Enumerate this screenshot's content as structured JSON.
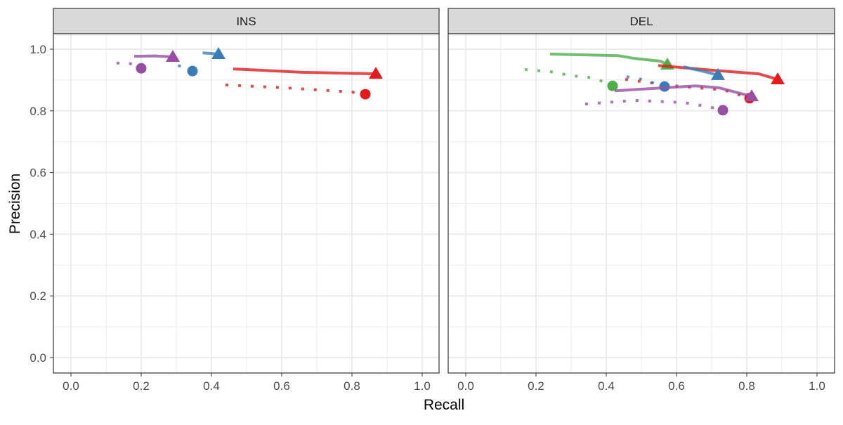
{
  "chart_data": {
    "type": "line",
    "xlabel": "Recall",
    "ylabel": "Precision",
    "xlim": [
      0,
      1
    ],
    "ylim": [
      0,
      1
    ],
    "x_ticks": [
      "0.0",
      "0.2",
      "0.4",
      "0.6",
      "0.8",
      "1.0"
    ],
    "y_ticks": [
      "0.0",
      "0.2",
      "0.4",
      "0.6",
      "0.8",
      "1.0"
    ],
    "grid": true,
    "colors": {
      "red": "#E41A1C",
      "blue": "#377EB8",
      "green": "#4DAF4A",
      "purple": "#984EA3"
    },
    "panels": [
      {
        "strip": "INS",
        "series": [
          {
            "color": "#984EA3",
            "linetype": "solid",
            "end_marker": "triangle",
            "x": [
              0.18,
              0.24,
              0.29
            ],
            "y": [
              0.977,
              0.978,
              0.975
            ]
          },
          {
            "color": "#984EA3",
            "linetype": "dotted",
            "end_marker": "circle",
            "x": [
              0.13,
              0.165,
              0.2
            ],
            "y": [
              0.955,
              0.955,
              0.938
            ]
          },
          {
            "color": "#377EB8",
            "linetype": "solid",
            "end_marker": "triangle",
            "x": [
              0.375,
              0.4,
              0.42
            ],
            "y": [
              0.988,
              0.986,
              0.984
            ]
          },
          {
            "color": "#377EB8",
            "linetype": "dotted",
            "end_marker": "circle",
            "x": [
              0.305,
              0.315,
              0.346
            ],
            "y": [
              0.947,
              0.943,
              0.929
            ]
          },
          {
            "color": "#E41A1C",
            "linetype": "solid",
            "end_marker": "triangle",
            "x": [
              0.462,
              0.658,
              0.868
            ],
            "y": [
              0.936,
              0.925,
              0.92
            ]
          },
          {
            "color": "#E41A1C",
            "linetype": "dotted",
            "end_marker": "circle",
            "x": [
              0.44,
              0.62,
              0.8,
              0.838
            ],
            "y": [
              0.884,
              0.874,
              0.861,
              0.854
            ]
          }
        ]
      },
      {
        "strip": "DEL",
        "series": [
          {
            "color": "#4DAF4A",
            "linetype": "solid",
            "end_marker": "triangle",
            "x": [
              0.24,
              0.434,
              0.48,
              0.554,
              0.574
            ],
            "y": [
              0.984,
              0.979,
              0.97,
              0.961,
              0.95
            ]
          },
          {
            "color": "#4DAF4A",
            "linetype": "dotted",
            "end_marker": "circle",
            "x": [
              0.168,
              0.24,
              0.308,
              0.348,
              0.38,
              0.418
            ],
            "y": [
              0.934,
              0.927,
              0.913,
              0.909,
              0.9,
              0.881
            ]
          },
          {
            "color": "#E41A1C",
            "linetype": "solid",
            "end_marker": "triangle",
            "x": [
              0.548,
              0.7,
              0.834,
              0.888
            ],
            "y": [
              0.947,
              0.932,
              0.92,
              0.902
            ]
          },
          {
            "color": "#E41A1C",
            "linetype": "dotted",
            "end_marker": "circle",
            "x": [
              0.454,
              0.594,
              0.734,
              0.768,
              0.808
            ],
            "y": [
              0.902,
              0.881,
              0.868,
              0.856,
              0.841
            ]
          },
          {
            "color": "#377EB8",
            "linetype": "solid",
            "end_marker": "triangle",
            "x": [
              0.62,
              0.68,
              0.718
            ],
            "y": [
              0.943,
              0.927,
              0.916
            ]
          },
          {
            "color": "#377EB8",
            "linetype": "dotted",
            "end_marker": "circle",
            "x": [
              0.458,
              0.494,
              0.528,
              0.566
            ],
            "y": [
              0.911,
              0.904,
              0.893,
              0.879
            ]
          },
          {
            "color": "#984EA3",
            "linetype": "solid",
            "end_marker": "triangle",
            "x": [
              0.424,
              0.568,
              0.654,
              0.72,
              0.774,
              0.814
            ],
            "y": [
              0.865,
              0.875,
              0.881,
              0.875,
              0.859,
              0.847
            ]
          },
          {
            "color": "#984EA3",
            "linetype": "dotted",
            "end_marker": "circle",
            "x": [
              0.34,
              0.48,
              0.62,
              0.694,
              0.732
            ],
            "y": [
              0.822,
              0.834,
              0.827,
              0.813,
              0.802
            ]
          }
        ]
      }
    ]
  }
}
